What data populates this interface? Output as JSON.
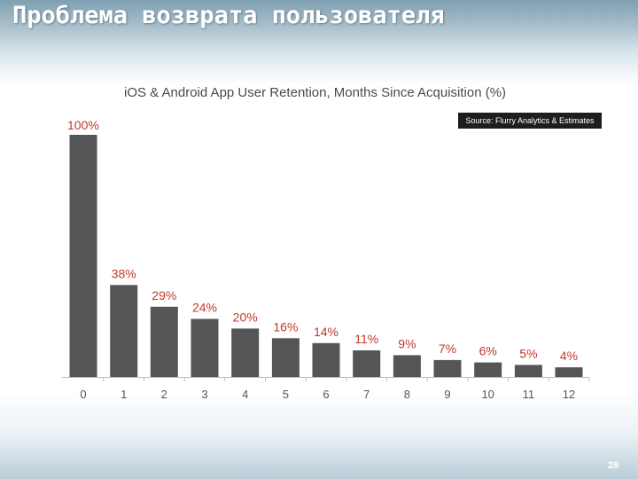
{
  "slide": {
    "title": "Проблема возврата пользователя",
    "page_number": "28"
  },
  "chart_data": {
    "type": "bar",
    "title": "iOS & Android App User Retention, Months Since Acquisition (%)",
    "source": "Source: Flurry Analytics & Estimates",
    "categories": [
      "0",
      "1",
      "2",
      "3",
      "4",
      "5",
      "6",
      "7",
      "8",
      "9",
      "10",
      "11",
      "12"
    ],
    "values": [
      100,
      38,
      29,
      24,
      20,
      16,
      14,
      11,
      9,
      7,
      6,
      5,
      4
    ],
    "data_labels": [
      "100%",
      "38%",
      "29%",
      "24%",
      "20%",
      "16%",
      "14%",
      "11%",
      "9%",
      "7%",
      "6%",
      "5%",
      "4%"
    ],
    "ylim": [
      0,
      100
    ],
    "grid": false,
    "bar_color": "#555555",
    "label_color": "#c0392b"
  }
}
